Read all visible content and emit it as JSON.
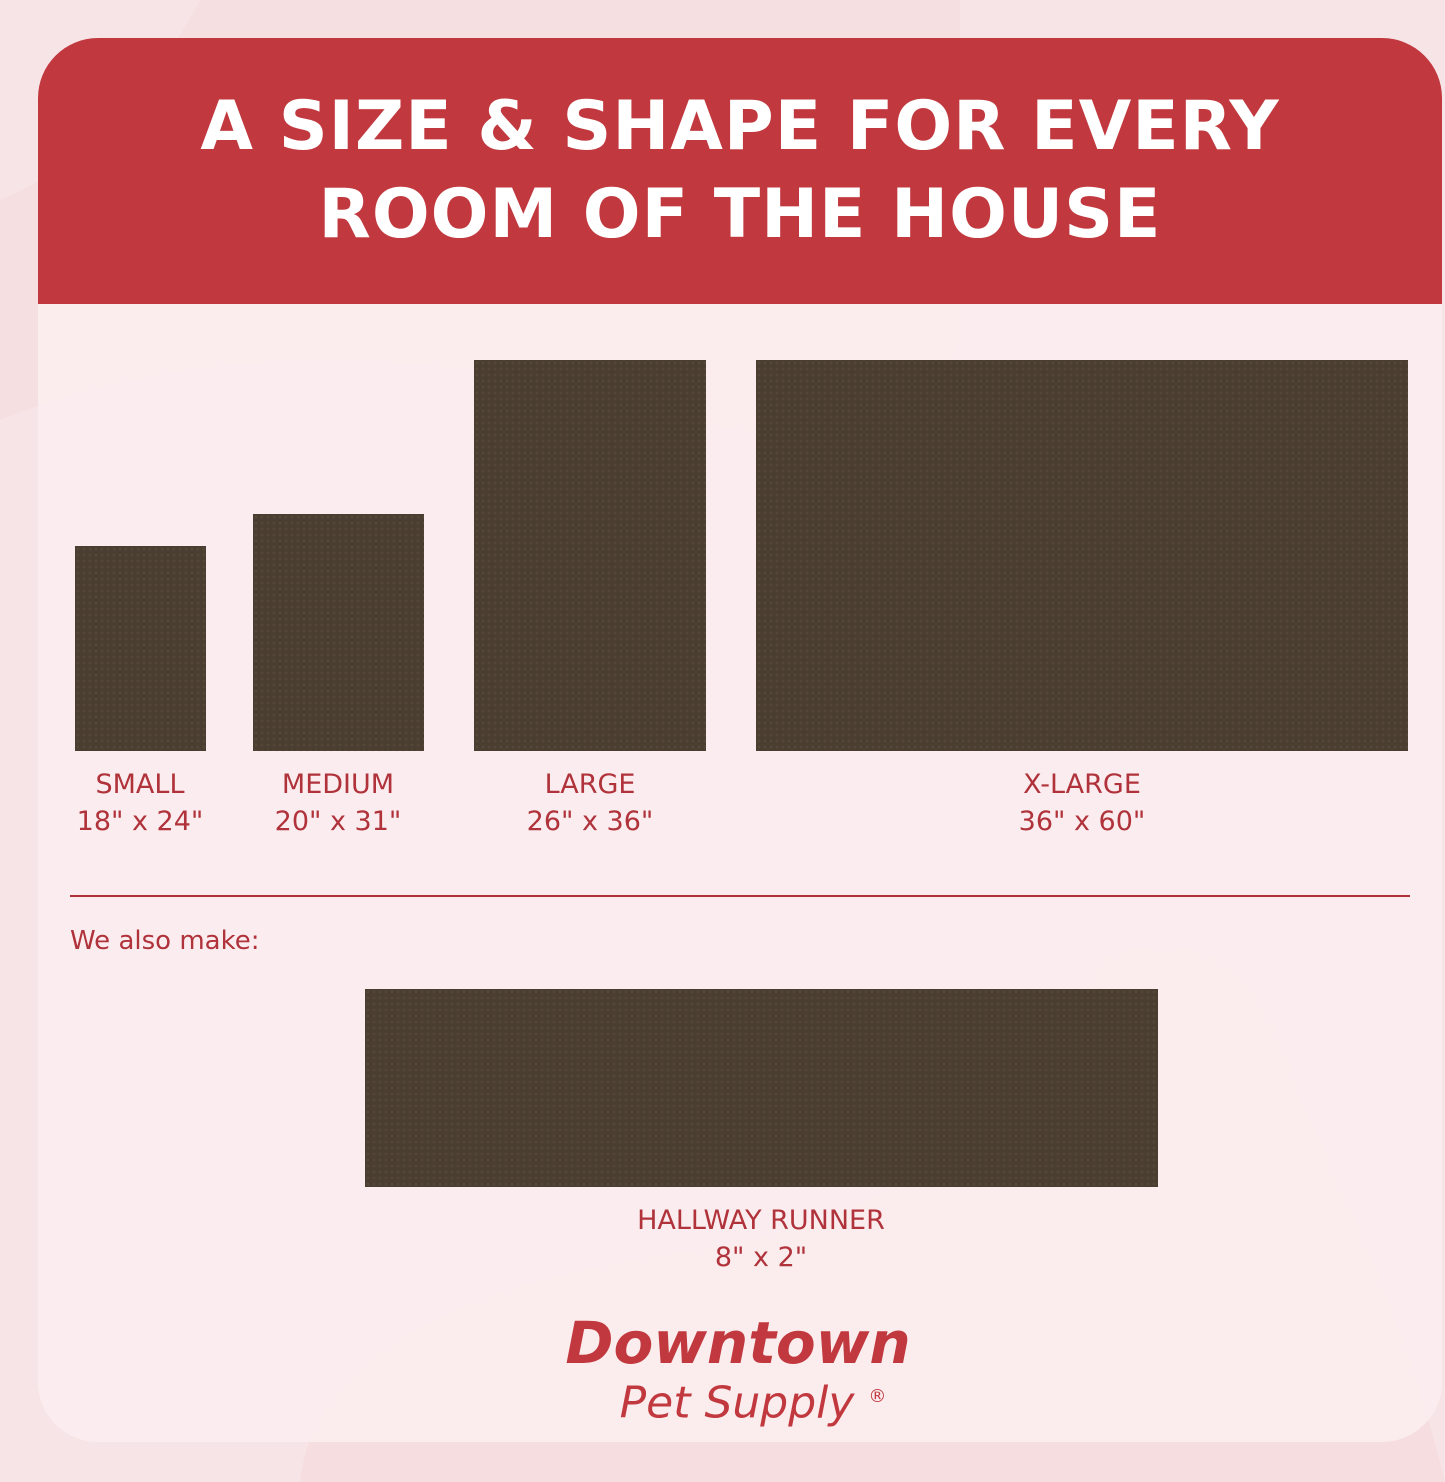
{
  "header": {
    "line1": "A SIZE & SHAPE FOR EVERY",
    "line2": "ROOM OF THE HOUSE"
  },
  "sizes": [
    {
      "name": "SMALL",
      "dims": "18\" x 24\""
    },
    {
      "name": "MEDIUM",
      "dims": "20\" x 31\""
    },
    {
      "name": "LARGE",
      "dims": "26\" x 36\""
    },
    {
      "name": "X-LARGE",
      "dims": "36\" x 60\""
    }
  ],
  "also": {
    "label": "We also make:",
    "name": "HALLWAY RUNNER",
    "dims": "8\" x 2\""
  },
  "logo": {
    "line1": "Downtown",
    "line2": "Pet Supply",
    "mark": "®"
  },
  "colors": {
    "accent": "#c1393f",
    "mat": "#4a3e31",
    "text": "#b0323a"
  }
}
